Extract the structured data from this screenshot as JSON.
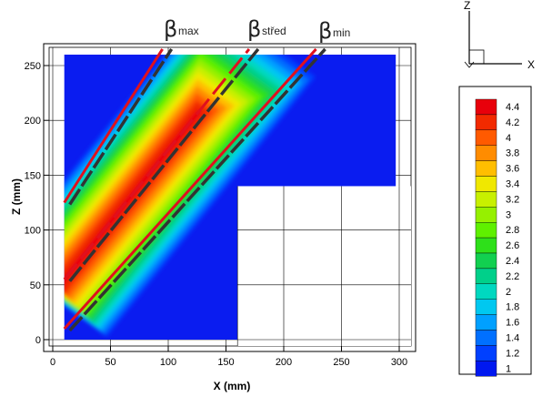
{
  "chart_data": {
    "type": "heatmap",
    "xlabel": "X (mm)",
    "ylabel": "Z (mm)",
    "xlim": [
      -5,
      305
    ],
    "ylim": [
      -5,
      268
    ],
    "xticks": [
      0,
      50,
      100,
      150,
      200,
      250,
      300
    ],
    "yticks": [
      0,
      50,
      100,
      150,
      200,
      250
    ],
    "domain": {
      "upper_rect": {
        "x": [
          10,
          297
        ],
        "z": [
          140,
          260
        ]
      },
      "lower_rect": {
        "x": [
          10,
          160
        ],
        "z": [
          0,
          140
        ]
      }
    },
    "field": {
      "peak_value": 4.4,
      "background_value": 1,
      "band_center_line": {
        "x0": 10,
        "z0": 55,
        "x1": 170,
        "z1": 265
      },
      "band_halfwidth_mm": 58
    },
    "lines": [
      {
        "name": "βmax",
        "style": "solid",
        "points": [
          [
            10,
            125
          ],
          [
            95,
            265
          ]
        ]
      },
      {
        "name": "βstřed",
        "style": "dashed",
        "points": [
          [
            10,
            55
          ],
          [
            170,
            265
          ]
        ]
      },
      {
        "name": "βmin",
        "style": "solid",
        "points": [
          [
            10,
            10
          ],
          [
            228,
            265
          ]
        ]
      }
    ],
    "line_labels": [
      {
        "greek": "β",
        "sub": "max"
      },
      {
        "greek": "β",
        "sub": "střed"
      },
      {
        "greek": "β",
        "sub": "min"
      }
    ],
    "colorbar": {
      "levels": [
        4.4,
        4.2,
        4,
        3.8,
        3.6,
        3.4,
        3.2,
        3,
        2.8,
        2.6,
        2.4,
        2.2,
        2,
        1.8,
        1.6,
        1.4,
        1.2,
        1
      ],
      "colors": [
        "#e8000b",
        "#f22a00",
        "#ff5a00",
        "#ff8c00",
        "#ffbe00",
        "#f0e800",
        "#c8f000",
        "#96f000",
        "#5ff000",
        "#2ee01a",
        "#12d050",
        "#00d08a",
        "#00d8c0",
        "#00c8f0",
        "#00a0ff",
        "#0070ff",
        "#0040ff",
        "#0018f0"
      ]
    },
    "background_color": "#0a1cf0",
    "grid": true
  },
  "axes_triad": {
    "z_label": "Z",
    "x_label": "X"
  }
}
